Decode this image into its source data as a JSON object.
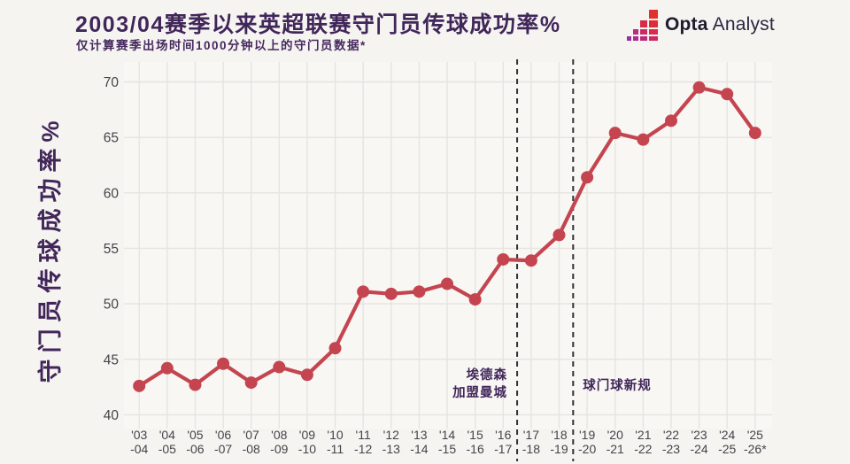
{
  "header": {
    "title": "2003/04赛季以来英超联赛守门员传球成功率%",
    "subtitle": "仅计算赛季出场时间1000分钟以上的守门员数据*",
    "logo_primary": "Opta",
    "logo_secondary": "Analyst"
  },
  "colors": {
    "accent_red": "#c4454f",
    "title_purple": "#41265a",
    "grid": "#e6e4e1",
    "plot_bg": "#f8f7f4",
    "axis_text": "#454349",
    "dashed_line": "#323232",
    "logo_gradient": [
      "#9b2da6",
      "#ab2b92",
      "#bc2a7b",
      "#cb2a62",
      "#d72b4a",
      "#de2d38",
      "#e1312b"
    ]
  },
  "chart_data": {
    "type": "line",
    "title": "2003/04赛季以来英超联赛守门员传球成功率%",
    "subtitle": "仅计算赛季出场时间1000分钟以上的守门员数据*",
    "xlabel": "",
    "ylabel": "守门员传球成功率%",
    "ylim": [
      40,
      70
    ],
    "yticks": [
      40,
      45,
      50,
      55,
      60,
      65,
      70
    ],
    "grid": true,
    "legend": false,
    "categories": [
      [
        "'03",
        "-04"
      ],
      [
        "'04",
        "-05"
      ],
      [
        "'05",
        "-06"
      ],
      [
        "'06",
        "-07"
      ],
      [
        "'07",
        "-08"
      ],
      [
        "'08",
        "-09"
      ],
      [
        "'09",
        "-10"
      ],
      [
        "'10",
        "-11"
      ],
      [
        "'11",
        "-12"
      ],
      [
        "'12",
        "-13"
      ],
      [
        "'13",
        "-14"
      ],
      [
        "'14",
        "-15"
      ],
      [
        "'15",
        "-16"
      ],
      [
        "'16",
        "-17"
      ],
      [
        "'17",
        "-18"
      ],
      [
        "'18",
        "-19"
      ],
      [
        "'19",
        "-20"
      ],
      [
        "'20",
        "-21"
      ],
      [
        "'21",
        "-22"
      ],
      [
        "'22",
        "-23"
      ],
      [
        "'23",
        "-24"
      ],
      [
        "'24",
        "-25"
      ],
      [
        "'25",
        "-26*"
      ]
    ],
    "values": [
      42.6,
      44.2,
      42.7,
      44.6,
      42.9,
      44.3,
      43.6,
      46.0,
      51.1,
      50.9,
      51.1,
      51.8,
      50.4,
      54.0,
      53.9,
      56.2,
      61.4,
      65.4,
      64.8,
      66.5,
      69.5,
      68.9,
      65.4
    ],
    "annotations": [
      {
        "text": "埃德森\n加盟曼城",
        "between_indices": [
          13,
          14
        ],
        "label_side": "left"
      },
      {
        "text": "球门球新规",
        "between_indices": [
          15,
          16
        ],
        "label_side": "right"
      }
    ]
  }
}
